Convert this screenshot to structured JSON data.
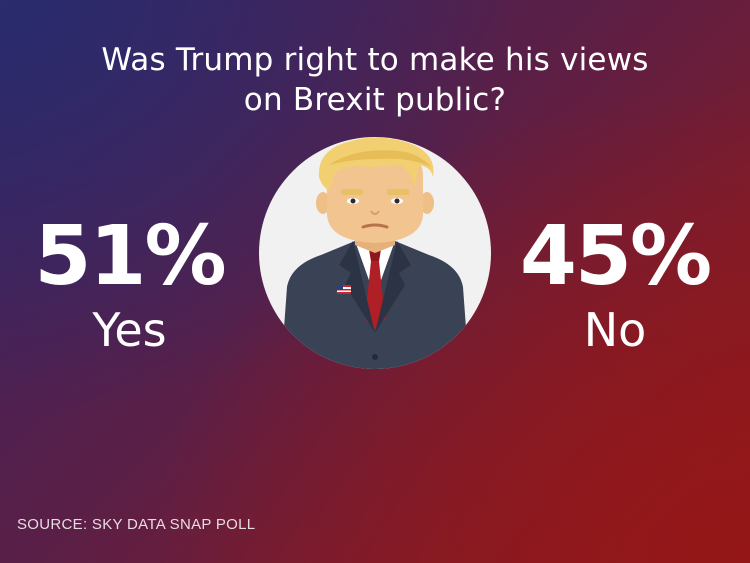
{
  "chart_data": {
    "type": "table",
    "title_lines": [
      "Was Trump right to make his views",
      "on Brexit public?"
    ],
    "categories": [
      "Yes",
      "No"
    ],
    "values": [
      51,
      45
    ],
    "value_labels": [
      "51%",
      "45%"
    ],
    "source": "SOURCE: SKY DATA SNAP POLL"
  },
  "colors": {
    "background_top_left": "#2c2c6e",
    "background_bottom_right": "#8c1a1f",
    "text": "#ffffff",
    "portrait_circle": "#f1f1f1",
    "suit": "#3a4256",
    "tie": "#b11f26",
    "hair": "#f2d072",
    "skin": "#f2c48f"
  },
  "icons": [
    "trump-portrait-icon",
    "flag-pin-icon"
  ]
}
